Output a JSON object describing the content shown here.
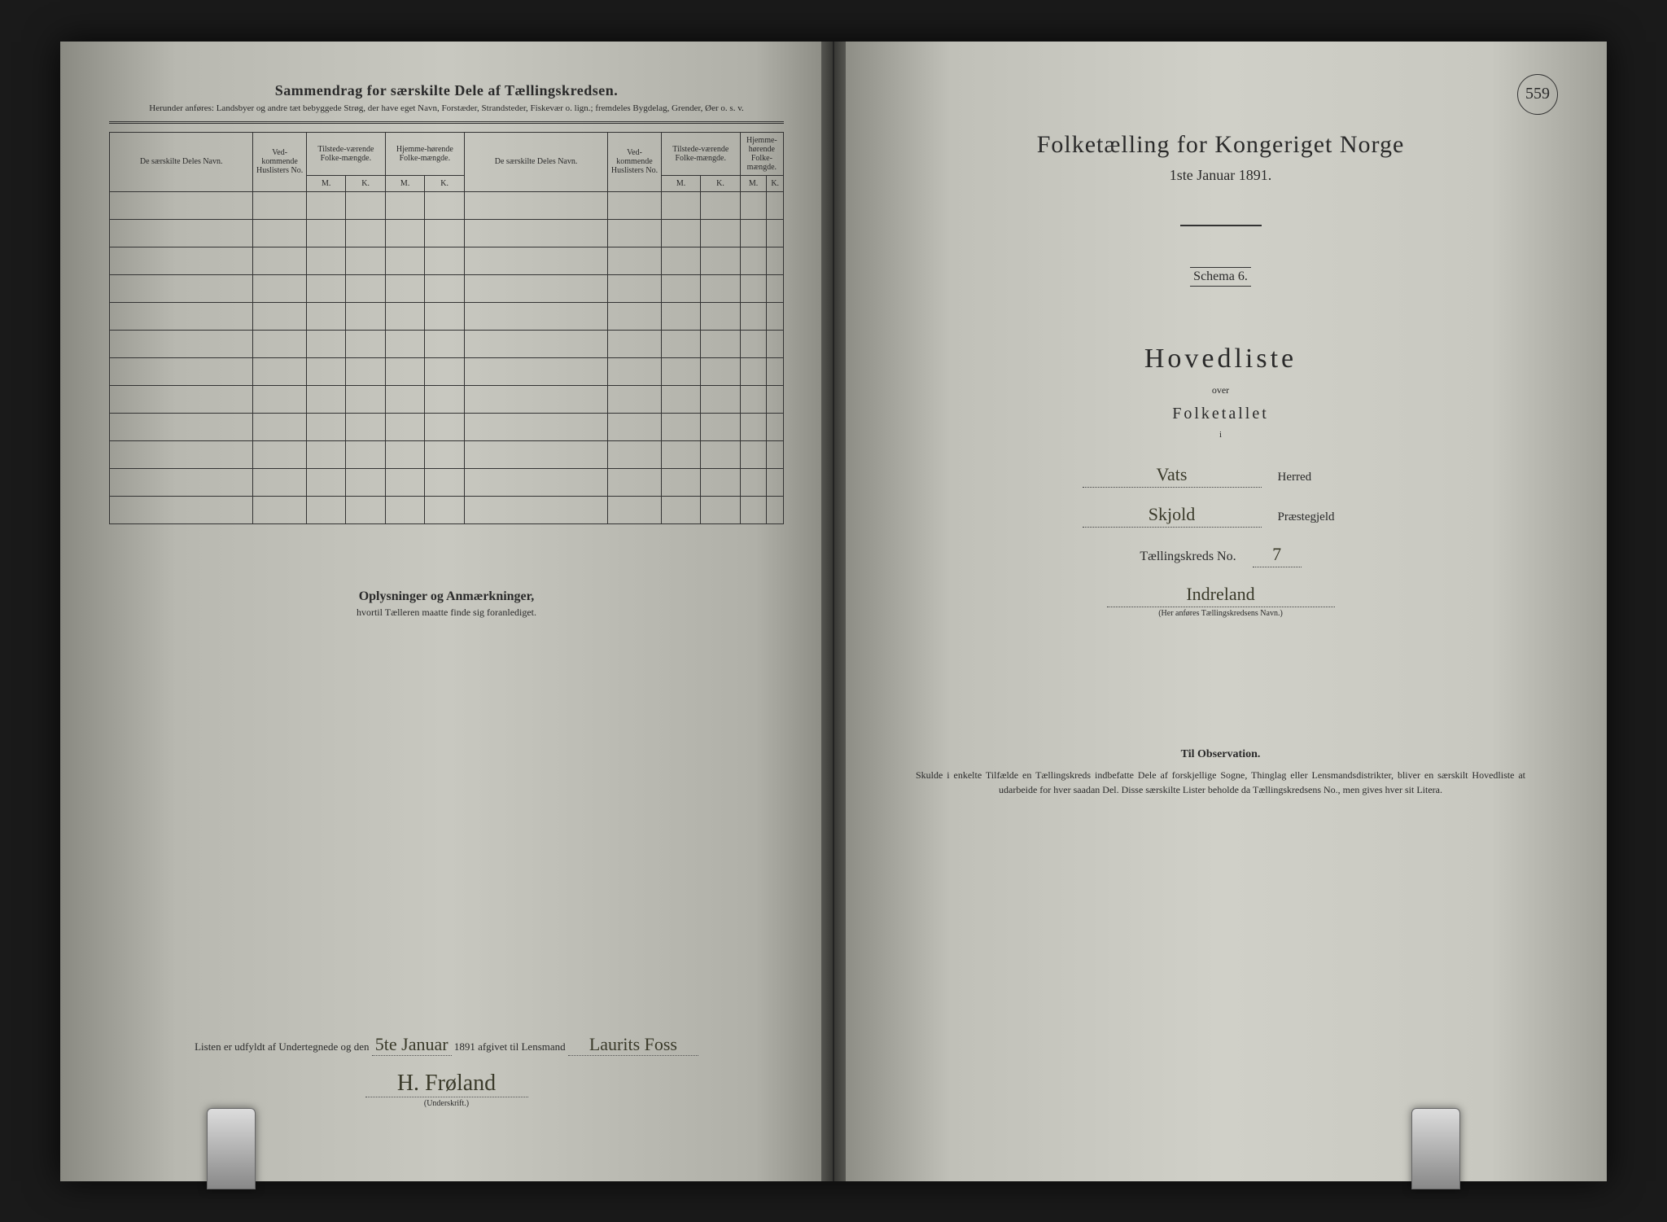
{
  "page_number": "559",
  "left": {
    "title": "Sammendrag for særskilte Dele af Tællingskredsen.",
    "subtitle": "Herunder anføres: Landsbyer og andre tæt bebyggede Strøg, der have eget Navn, Forstæder, Strandsteder, Fiskevær o. lign.; fremdeles Bygdelag, Grender, Øer o. s. v.",
    "columns": {
      "name": "De særskilte Deles Navn.",
      "huslister": "Ved-kommende Huslisters No.",
      "tilstede": "Tilstede-værende Folke-mængde.",
      "hjemme": "Hjemme-hørende Folke-mængde.",
      "m": "M.",
      "k": "K."
    },
    "row_count": 12,
    "remarks_title": "Oplysninger og Anmærkninger,",
    "remarks_sub": "hvortil Tælleren maatte finde sig foranlediget.",
    "signature_line_prefix": "Listen er udfyldt af Undertegnede og den",
    "signature_date": "5te Januar",
    "signature_year": "1891 afgivet til Lensmand",
    "lensmand_name": "Laurits Foss",
    "signer_name": "H. Frøland",
    "signer_caption": "(Underskrift.)"
  },
  "right": {
    "census_title": "Folketælling for Kongeriget Norge",
    "census_date": "1ste Januar 1891.",
    "schema": "Schema 6.",
    "hovedliste": "Hovedliste",
    "over": "over",
    "folketallet": "Folketallet",
    "i": "i",
    "herred_value": "Vats",
    "herred_label": "Herred",
    "prestegjeld_value": "Skjold",
    "prestegjeld_label": "Præstegjeld",
    "kreds_label": "Tællingskreds No.",
    "kreds_value": "7",
    "kreds_name": "Indreland",
    "kreds_caption": "(Her anføres Tællingskredsens Navn.)",
    "obs_title": "Til Observation.",
    "obs_text": "Skulde i enkelte Tilfælde en Tællingskreds indbefatte Dele af forskjellige Sogne, Thinglag eller Lensmandsdistrikter, bliver en særskilt Hovedliste at udarbeide for hver saadan Del. Disse særskilte Lister beholde da Tællingskredsens No., men gives hver sit Litera."
  },
  "styling": {
    "page_bg_left": "#c0c0b8",
    "page_bg_right": "#cacac2",
    "ink_color": "#2a2a2a",
    "handwriting_color": "#3a3a2a",
    "border_color": "#333333",
    "title_fontsize_pt": 30,
    "body_fontsize_pt": 12,
    "table_fontsize_pt": 10
  }
}
